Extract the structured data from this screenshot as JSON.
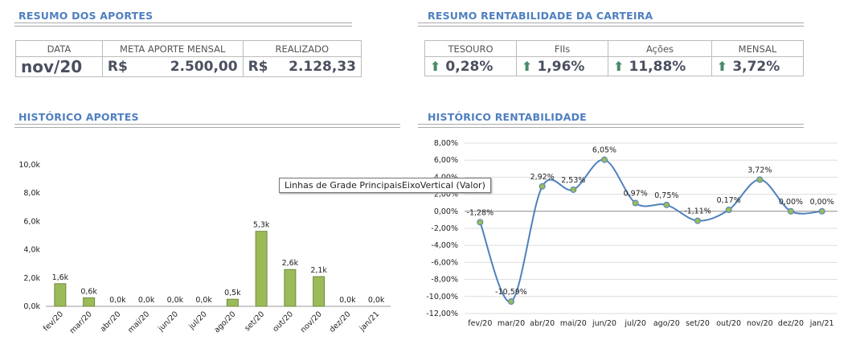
{
  "aportes": {
    "title": "RESUMO DOS APORTES",
    "headers": [
      "DATA",
      "META APORTE MENSAL",
      "REALIZADO"
    ],
    "data": "nov/20",
    "meta_cur": "R$",
    "meta": "2.500,00",
    "real_cur": "R$",
    "realizado": "2.128,33"
  },
  "rent": {
    "title": "RESUMO RENTABILIDADE DA CARTEIRA",
    "headers": [
      "TESOURO",
      "FIIs",
      "Ações",
      "MENSAL"
    ],
    "values": [
      "0,28%",
      "1,96%",
      "11,88%",
      "3,72%"
    ],
    "icon": "arrow-up-icon"
  },
  "hist_aportes_title": "HISTÓRICO APORTES",
  "hist_rent_title": "HISTÓRICO RENTABILIDADE",
  "tooltip": "Linhas de Grade PrincipaisEixoVertical (Valor)",
  "chart_data": [
    {
      "type": "bar",
      "title": "HISTÓRICO APORTES",
      "categories": [
        "fev/20",
        "mar/20",
        "abr/20",
        "mai/20",
        "jun/20",
        "jul/20",
        "ago/20",
        "set/20",
        "out/20",
        "nov/20",
        "dez/20",
        "jan/21"
      ],
      "values": [
        1.6,
        0.6,
        0,
        0,
        0,
        0,
        0.5,
        5.3,
        2.6,
        2.1,
        0,
        0
      ],
      "labels": [
        "1,6k",
        "0,6k",
        "0,0k",
        "0,0k",
        "0,0k",
        "0,0k",
        "0,5k",
        "5,3k",
        "2,6k",
        "2,1k",
        "0,0k",
        "0,0k"
      ],
      "yticks": [
        "0,0k",
        "2,0k",
        "4,0k",
        "6,0k",
        "8,0k",
        "10,0k"
      ],
      "ylim": [
        0,
        10
      ],
      "color": "#9bbb59"
    },
    {
      "type": "line",
      "title": "HISTÓRICO RENTABILIDADE",
      "categories": [
        "fev/20",
        "mar/20",
        "abr/20",
        "mai/20",
        "jun/20",
        "jul/20",
        "ago/20",
        "set/20",
        "out/20",
        "nov/20",
        "dez/20",
        "jan/21"
      ],
      "values": [
        -1.28,
        -10.59,
        2.92,
        2.53,
        6.05,
        0.97,
        0.75,
        -1.11,
        0.17,
        3.72,
        0,
        0
      ],
      "labels": [
        "-1,28%",
        "-10,59%",
        "2,92%",
        "2,53%",
        "6,05%",
        "0,97%",
        "0,75%",
        "-1,11%",
        "0,17%",
        "3,72%",
        "0,00%",
        "0,00%"
      ],
      "yticks": [
        "-12,00%",
        "-10,00%",
        "-8,00%",
        "-6,00%",
        "-4,00%",
        "-2,00%",
        "0,00%",
        "2,00%",
        "4,00%",
        "6,00%",
        "8,00%"
      ],
      "ylim": [
        -12,
        8
      ],
      "color": "#4f81bd"
    }
  ]
}
